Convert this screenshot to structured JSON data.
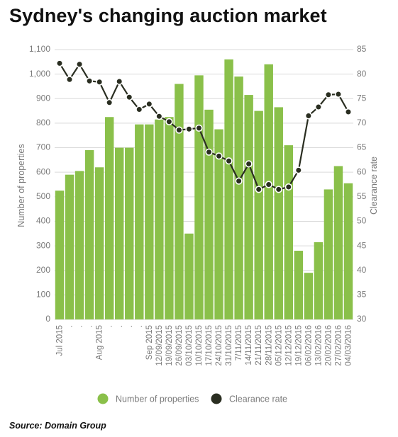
{
  "title": "Sydney's changing auction market",
  "source": "Source: Domain Group",
  "colors": {
    "bar": "#8ac04a",
    "line": "#2a2e21",
    "point_fill": "#ffffff",
    "grid": "#d9d9d9",
    "tick_text": "#7a7a7a",
    "axis_text": "#7a7a7a"
  },
  "chart_data": {
    "type": "bar",
    "combo": "bar + line (secondary axis)",
    "categories": [
      "Jul 2015",
      ".",
      ".",
      ".",
      "Aug 2015",
      ".",
      ".",
      ".",
      ".",
      "Sep 2015",
      "12/09/2015",
      "19/09/2015",
      "26/09/2015",
      "03/10/2015",
      "10/10/2015",
      "17/10/2015",
      "24/10/2015",
      "31/10/2015",
      "7/11/2015",
      "14/11/2015",
      "21/11/2015",
      "28/11/2015",
      "05/12/2015",
      "12/12/2015",
      "19/12/2015",
      "06/02/2016",
      "13/02/2016",
      "20/02/2016",
      "27/02/2016",
      "04/03/2016"
    ],
    "xlabel": "",
    "ylabel": "Number of properties",
    "ylabel_right": "Clearance rate",
    "ylim": [
      0,
      1100
    ],
    "ylim_right": [
      30,
      85
    ],
    "yticks": [
      0,
      100,
      200,
      300,
      400,
      500,
      600,
      700,
      800,
      900,
      1000,
      1100
    ],
    "ytick_labels": [
      "0",
      "100",
      "200",
      "300",
      "400",
      "500",
      "600",
      "700",
      "800",
      "900",
      "1,000",
      "1,100"
    ],
    "yticks_right": [
      30,
      35,
      40,
      45,
      50,
      55,
      60,
      65,
      70,
      75,
      80,
      85
    ],
    "ytick_labels_right": [
      "30",
      "35",
      "40",
      "45",
      "50",
      "55",
      "60",
      "65",
      "70",
      "75",
      "80",
      "85"
    ],
    "grid": true,
    "legend_position": "bottom",
    "series": [
      {
        "name": "Number of properties",
        "kind": "bar",
        "axis": "left",
        "values": [
          525,
          590,
          605,
          690,
          620,
          825,
          700,
          700,
          795,
          795,
          815,
          825,
          960,
          350,
          995,
          855,
          775,
          1060,
          990,
          915,
          850,
          1040,
          865,
          710,
          280,
          190,
          315,
          530,
          625,
          555
        ]
      },
      {
        "name": "Clearance rate",
        "kind": "line",
        "axis": "right",
        "values": [
          82.2,
          78.9,
          82.0,
          78.6,
          78.4,
          74.2,
          78.5,
          75.3,
          72.8,
          73.9,
          71.4,
          70.3,
          68.6,
          68.8,
          69.0,
          64.1,
          63.3,
          62.3,
          58.2,
          61.7,
          56.5,
          57.5,
          56.5,
          57.0,
          60.4,
          71.5,
          73.3,
          75.8,
          75.9,
          72.3
        ]
      }
    ]
  }
}
